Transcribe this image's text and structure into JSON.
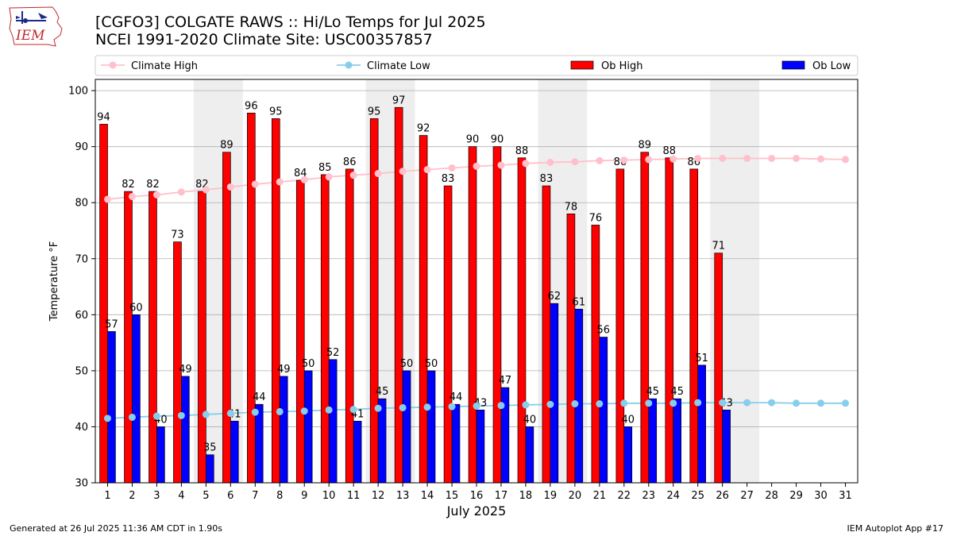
{
  "title": {
    "line1": "[CGFO3] COLGATE RAWS :: Hi/Lo Temps for Jul 2025",
    "line2": "NCEI 1991-2020 Climate Site: USC00357857"
  },
  "logo": {
    "text": "IEM",
    "icon": "iowa-state-outline-logo"
  },
  "footer": {
    "left": "Generated at 26 Jul 2025 11:36 AM CDT in 1.90s",
    "right": "IEM Autoplot App #17"
  },
  "colors": {
    "ob_high": "#ff0000",
    "ob_low": "#0000ff",
    "climate_high": "#ffc0cb",
    "climate_low": "#87ceeb",
    "weekend_shade": "#eeeeee",
    "grid": "#b0b0b0"
  },
  "chart_data": {
    "type": "bar",
    "xlabel": "July 2025",
    "ylabel": "Temperature °F",
    "ylim": [
      30,
      102
    ],
    "yticks": [
      30,
      40,
      50,
      60,
      70,
      80,
      90,
      100
    ],
    "grid": "horizontal",
    "legend_position": "top",
    "categories": [
      "1",
      "2",
      "3",
      "4",
      "5",
      "6",
      "7",
      "8",
      "9",
      "10",
      "11",
      "12",
      "13",
      "14",
      "15",
      "16",
      "17",
      "18",
      "19",
      "20",
      "21",
      "22",
      "23",
      "24",
      "25",
      "26",
      "27",
      "28",
      "29",
      "30",
      "31"
    ],
    "shaded_days": [
      [
        5,
        6
      ],
      [
        12,
        13
      ],
      [
        19,
        20
      ],
      [
        26,
        27
      ]
    ],
    "series": [
      {
        "name": "Climate High",
        "kind": "line",
        "color": "#ffc0cb",
        "values": [
          80.6,
          81.1,
          81.4,
          81.9,
          82.3,
          82.8,
          83.3,
          83.7,
          84.1,
          84.6,
          84.9,
          85.2,
          85.6,
          85.9,
          86.2,
          86.5,
          86.7,
          87.0,
          87.2,
          87.3,
          87.5,
          87.6,
          87.7,
          87.8,
          87.9,
          87.9,
          87.9,
          87.9,
          87.9,
          87.8,
          87.7
        ]
      },
      {
        "name": "Climate Low",
        "kind": "line",
        "color": "#87ceeb",
        "values": [
          41.5,
          41.7,
          41.9,
          42.0,
          42.2,
          42.4,
          42.6,
          42.7,
          42.8,
          43.0,
          43.1,
          43.3,
          43.4,
          43.5,
          43.6,
          43.7,
          43.8,
          43.9,
          44.0,
          44.1,
          44.1,
          44.2,
          44.2,
          44.2,
          44.3,
          44.3,
          44.3,
          44.3,
          44.2,
          44.2,
          44.2
        ]
      },
      {
        "name": "Ob High",
        "kind": "bar",
        "color": "#ff0000",
        "values": [
          94,
          82,
          82,
          73,
          82,
          89,
          96,
          95,
          84,
          85,
          86,
          95,
          97,
          92,
          83,
          90,
          90,
          88,
          83,
          78,
          76,
          86,
          89,
          88,
          86,
          71,
          null,
          null,
          null,
          null,
          null
        ]
      },
      {
        "name": "Ob Low",
        "kind": "bar",
        "color": "#0000ff",
        "values": [
          57,
          60,
          40,
          49,
          35,
          41,
          44,
          49,
          50,
          52,
          41,
          45,
          50,
          50,
          44,
          43,
          47,
          40,
          62,
          61,
          56,
          40,
          45,
          45,
          51,
          43,
          null,
          null,
          null,
          null,
          null
        ]
      }
    ]
  }
}
